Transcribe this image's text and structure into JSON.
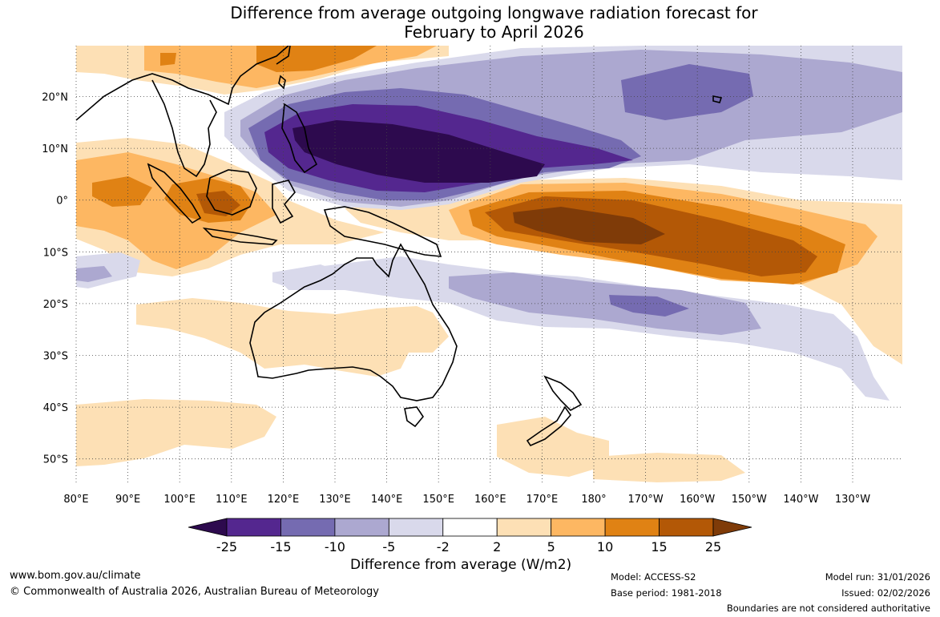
{
  "title_line1": "Difference from average outgoing longwave radiation forecast for",
  "title_line2": "February to April 2026",
  "colorbar": {
    "title": "Difference from average (W/m2)",
    "ticks": [
      "-25",
      "-15",
      "-10",
      "-5",
      "-2",
      "2",
      "5",
      "10",
      "15",
      "25"
    ],
    "colors": [
      "#2d0a4e",
      "#54278f",
      "#756bb1",
      "#aca8d0",
      "#d9d9eb",
      "#ffffff",
      "#fde0b5",
      "#fdb762",
      "#e08214",
      "#b35806",
      "#7f3b08"
    ]
  },
  "map": {
    "lat_labels": [
      "20°N",
      "10°N",
      "0°",
      "10°S",
      "20°S",
      "30°S",
      "40°S",
      "50°S"
    ],
    "lon_labels": [
      "80°E",
      "90°E",
      "100°E",
      "110°E",
      "120°E",
      "130°E",
      "140°E",
      "150°E",
      "160°E",
      "170°E",
      "180°",
      "170°W",
      "160°W",
      "150°W",
      "140°W",
      "130°W"
    ]
  },
  "footer": {
    "url": "www.bom.gov.au/climate",
    "copyright": "© Commonwealth of Australia 2026, Australian Bureau of Meteorology",
    "model": "Model: ACCESS-S2",
    "base_period": "Base period: 1981-2018",
    "model_run": "Model run: 31/01/2026",
    "issued": "Issued: 02/02/2026",
    "disclaimer": "Boundaries are not considered authoritative"
  }
}
